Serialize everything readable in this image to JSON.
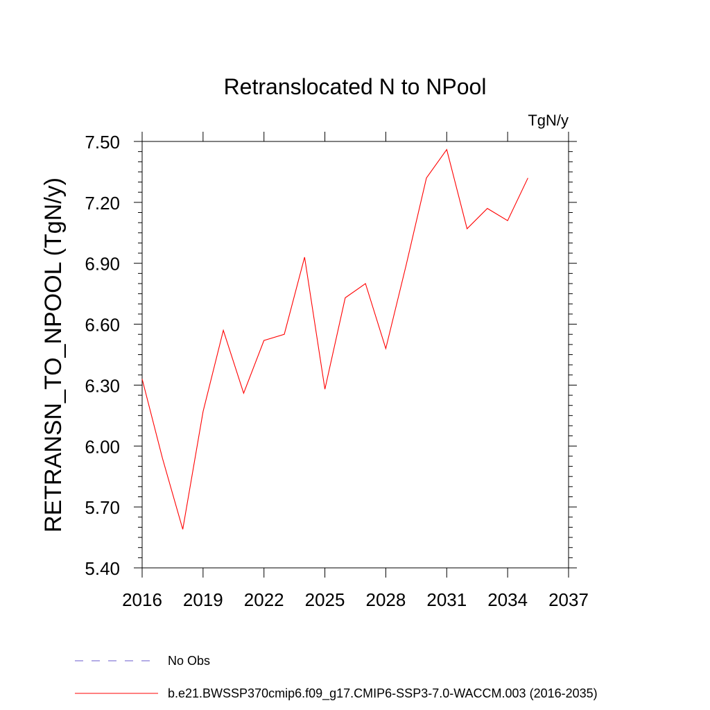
{
  "chart_data": {
    "type": "line",
    "title": "Retranslocated N to NPool",
    "units_label": "TgN/y",
    "xlabel": "",
    "ylabel": "RETRANSN_TO_NPOOL  (TgN/y)",
    "xlim": [
      2016,
      2037
    ],
    "ylim": [
      5.4,
      7.5
    ],
    "xticks": [
      2016,
      2019,
      2022,
      2025,
      2028,
      2031,
      2034,
      2037
    ],
    "yticks": [
      5.4,
      5.7,
      6.0,
      6.3,
      6.6,
      6.9,
      7.2,
      7.5
    ],
    "xtick_labels": [
      "2016",
      "2019",
      "2022",
      "2025",
      "2028",
      "2031",
      "2034",
      "2037"
    ],
    "ytick_labels": [
      "5.40",
      "5.70",
      "6.00",
      "6.30",
      "6.60",
      "6.90",
      "7.20",
      "7.50"
    ],
    "series": [
      {
        "name": "b.e21.BWSSP370cmip6.f09_g17.CMIP6-SSP3-7.0-WACCM.003 (2016-2035)",
        "color": "#ff0000",
        "x": [
          2016,
          2017,
          2018,
          2019,
          2020,
          2021,
          2022,
          2023,
          2024,
          2025,
          2026,
          2027,
          2028,
          2029,
          2030,
          2031,
          2032,
          2033,
          2034,
          2035
        ],
        "values": [
          6.33,
          5.94,
          5.59,
          6.17,
          6.57,
          6.26,
          6.52,
          6.55,
          6.93,
          6.28,
          6.73,
          6.8,
          6.48,
          6.89,
          7.32,
          7.46,
          7.07,
          7.17,
          7.11,
          7.32
        ]
      }
    ],
    "legend": [
      {
        "label": "No Obs",
        "style": "dashed",
        "color": "#6a5acd"
      },
      {
        "label": "b.e21.BWSSP370cmip6.f09_g17.CMIP6-SSP3-7.0-WACCM.003 (2016-2035)",
        "style": "solid",
        "color": "#ff0000"
      }
    ]
  }
}
